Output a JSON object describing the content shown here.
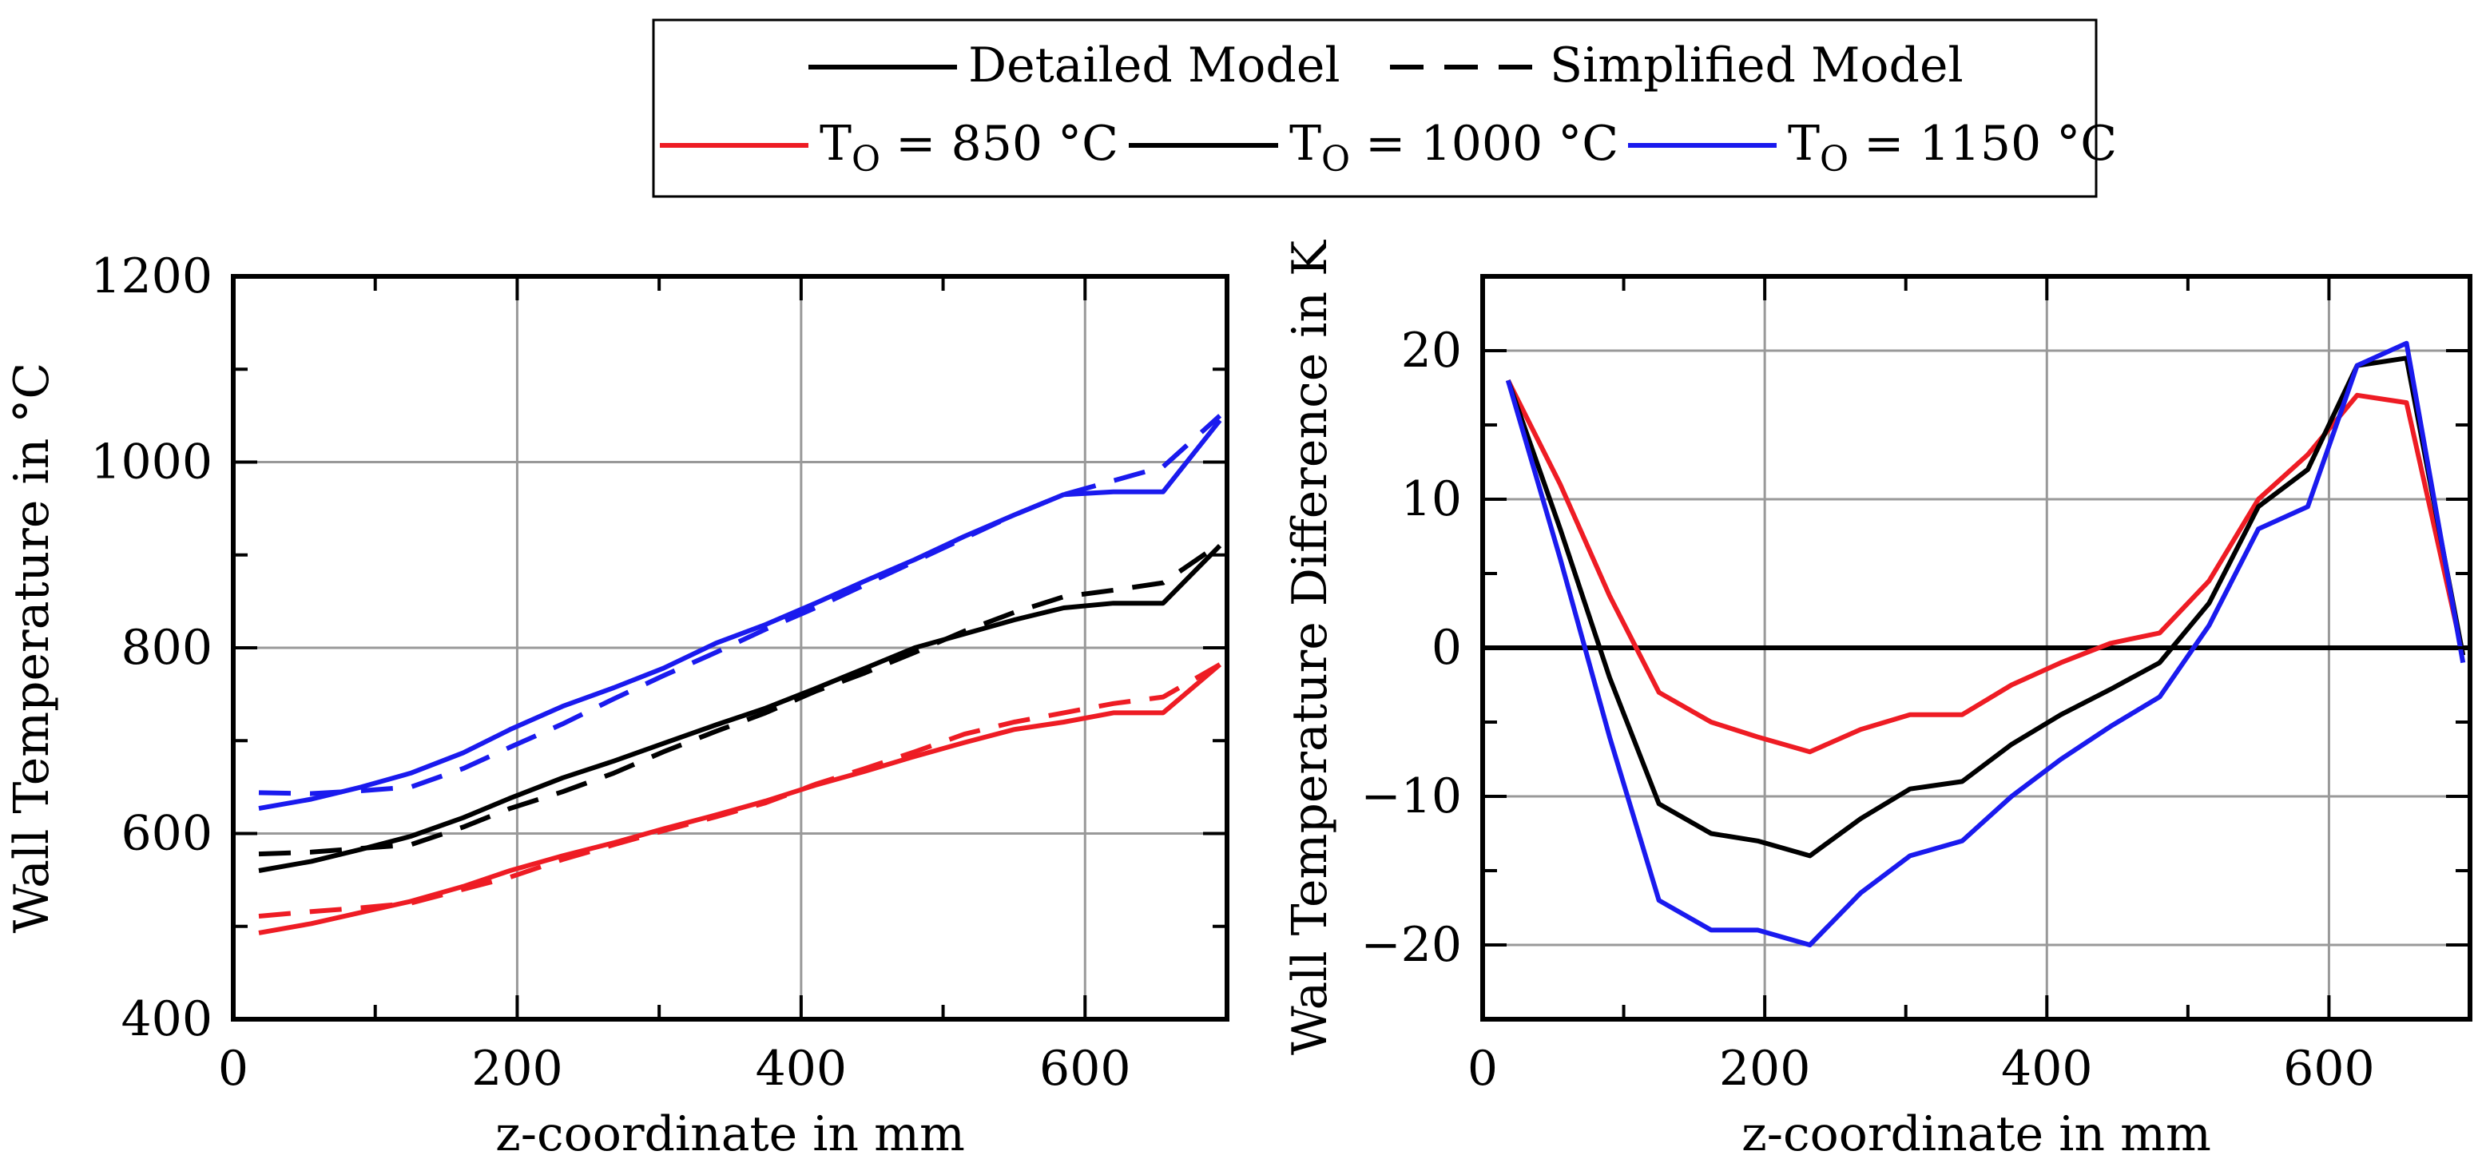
{
  "legend": {
    "model_items": [
      {
        "label": "Detailed Model",
        "style": "solid"
      },
      {
        "label": "Simplified Model",
        "style": "dashed"
      }
    ],
    "temp_items": [
      {
        "prefix": "T",
        "sub": "O",
        "value_text": " = 850 °C",
        "color": "#ee1c24"
      },
      {
        "prefix": "T",
        "sub": "O",
        "value_text": " = 1000 °C",
        "color": "#000000"
      },
      {
        "prefix": "T",
        "sub": "O",
        "value_text": " = 1150 °C",
        "color": "#1a1aee"
      }
    ]
  },
  "chart_data": [
    {
      "type": "line",
      "xlabel": "z-coordinate in mm",
      "ylabel": "Wall Temperature in °C",
      "xlim": [
        0,
        700
      ],
      "ylim": [
        400,
        1200
      ],
      "xticks": [
        0,
        200,
        400,
        600
      ],
      "yticks": [
        400,
        600,
        800,
        1000,
        1200
      ],
      "grid": true,
      "x": [
        18,
        55,
        90,
        125,
        162,
        195,
        232,
        268,
        303,
        340,
        375,
        410,
        445,
        480,
        515,
        550,
        585,
        620,
        655,
        695
      ],
      "series": [
        {
          "name": "Detailed Model, TO = 850 °C",
          "color": "#ee1c24",
          "style": "solid",
          "values": [
            493,
            503,
            515,
            527,
            543,
            560,
            576,
            590,
            605,
            620,
            635,
            652,
            667,
            683,
            698,
            712,
            720,
            730,
            730,
            782
          ]
        },
        {
          "name": "Simplified Model, TO = 850 °C",
          "color": "#ee1c24",
          "style": "dashed",
          "values": [
            511,
            516,
            520,
            525,
            540,
            553,
            572,
            588,
            603,
            618,
            633,
            653,
            670,
            688,
            707,
            720,
            730,
            740,
            747,
            782
          ]
        },
        {
          "name": "Detailed Model, TO = 1000 °C",
          "color": "#000000",
          "style": "solid",
          "values": [
            560,
            570,
            583,
            597,
            617,
            638,
            660,
            678,
            697,
            717,
            735,
            756,
            778,
            800,
            815,
            830,
            843,
            848,
            848,
            910
          ]
        },
        {
          "name": "Simplified Model, TO = 1000 °C",
          "color": "#000000",
          "style": "dashed",
          "values": [
            578,
            580,
            584,
            588,
            607,
            627,
            645,
            665,
            688,
            710,
            730,
            753,
            773,
            795,
            818,
            838,
            855,
            862,
            870,
            912
          ]
        },
        {
          "name": "Detailed Model, TO = 1150 °C",
          "color": "#1a1aee",
          "style": "solid",
          "values": [
            627,
            637,
            650,
            665,
            687,
            712,
            737,
            757,
            778,
            805,
            825,
            848,
            872,
            895,
            920,
            943,
            965,
            968,
            968,
            1045
          ]
        },
        {
          "name": "Simplified Model, TO = 1150 °C",
          "color": "#1a1aee",
          "style": "dashed",
          "values": [
            644,
            643,
            646,
            650,
            670,
            693,
            718,
            745,
            770,
            795,
            820,
            843,
            868,
            893,
            918,
            943,
            965,
            980,
            995,
            1050
          ]
        }
      ]
    },
    {
      "type": "line",
      "xlabel": "z-coordinate in mm",
      "ylabel": "Wall Temperature Difference in K",
      "xlim": [
        0,
        700
      ],
      "ylim": [
        -25,
        25
      ],
      "xticks": [
        0,
        200,
        400,
        600
      ],
      "yticks": [
        -20,
        -10,
        0,
        10,
        20
      ],
      "grid": true,
      "zero_line": true,
      "x": [
        18,
        55,
        90,
        125,
        162,
        195,
        232,
        268,
        303,
        340,
        375,
        410,
        445,
        480,
        515,
        550,
        585,
        620,
        655,
        695
      ],
      "series": [
        {
          "name": "TO = 850 °C",
          "color": "#ee1c24",
          "style": "solid",
          "values": [
            18,
            11,
            3.5,
            -3,
            -5,
            -6,
            -7,
            -5.5,
            -4.5,
            -4.5,
            -2.5,
            -1,
            0.3,
            1,
            4.5,
            10,
            13,
            17,
            16.5,
            -0.5
          ]
        },
        {
          "name": "TO = 1000 °C",
          "color": "#000000",
          "style": "solid",
          "values": [
            18,
            8,
            -2,
            -10.5,
            -12.5,
            -13,
            -14,
            -11.5,
            -9.5,
            -9,
            -6.5,
            -4.5,
            -2.8,
            -1,
            3,
            9.5,
            12,
            19,
            19.5,
            -0.5
          ]
        },
        {
          "name": "TO = 1150 °C",
          "color": "#1a1aee",
          "style": "solid",
          "values": [
            18,
            6,
            -6,
            -17,
            -19,
            -19,
            -20,
            -16.5,
            -14,
            -13,
            -10,
            -7.5,
            -5.3,
            -3.3,
            1.5,
            8,
            9.5,
            19,
            20.5,
            -1
          ]
        }
      ]
    }
  ]
}
